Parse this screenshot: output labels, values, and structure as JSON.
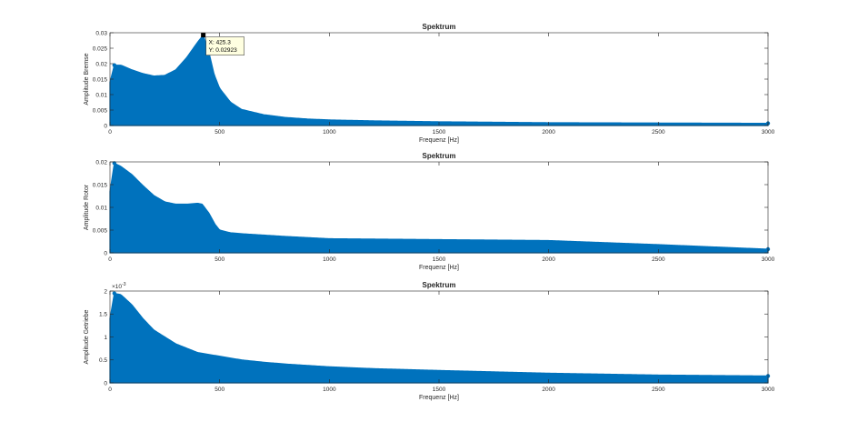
{
  "window": {
    "background": "#ffffff"
  },
  "colors": {
    "series": "#0072BD",
    "axis": "#262626",
    "grid_none": true,
    "datatip_bg": "#ffffe0"
  },
  "chart_data": [
    {
      "type": "area",
      "title": "Spektrum",
      "xlabel": "Frequenz [Hz]",
      "ylabel": "Amplitude Bremse",
      "xlim": [
        0,
        3000
      ],
      "ylim": [
        0,
        0.03
      ],
      "xticks": [
        0,
        500,
        1000,
        1500,
        2000,
        2500,
        3000
      ],
      "xtick_labels": [
        "0",
        "500",
        "1000",
        "1500",
        "2000",
        "2500",
        "3000"
      ],
      "yticks": [
        0,
        0.005,
        0.01,
        0.015,
        0.02,
        0.025,
        0.03
      ],
      "ytick_labels": [
        "0",
        "0.005",
        "0.01",
        "0.015",
        "0.02",
        "0.025",
        "0.03"
      ],
      "grid": false,
      "series": [
        {
          "x": [
            0,
            20,
            50,
            100,
            150,
            200,
            250,
            300,
            350,
            400,
            425.3,
            450,
            475,
            500,
            550,
            600,
            700,
            800,
            900,
            1000,
            1200,
            1500,
            2000,
            2500,
            3000
          ],
          "y": [
            0.014,
            0.0195,
            0.0195,
            0.018,
            0.0168,
            0.016,
            0.0162,
            0.018,
            0.022,
            0.027,
            0.02923,
            0.024,
            0.0165,
            0.012,
            0.0075,
            0.0052,
            0.0035,
            0.0026,
            0.0021,
            0.0018,
            0.0015,
            0.0012,
            0.0009,
            0.0008,
            0.0007
          ]
        }
      ],
      "datatip": {
        "x_label": "X: 425.3",
        "y_label": "Y: 0.02923",
        "x": 425.3,
        "y": 0.02923
      }
    },
    {
      "type": "area",
      "title": "Spektrum",
      "xlabel": "Frequenz [Hz]",
      "ylabel": "Amplitude Rotor",
      "xlim": [
        0,
        3000
      ],
      "ylim": [
        0,
        0.02
      ],
      "xticks": [
        0,
        500,
        1000,
        1500,
        2000,
        2500,
        3000
      ],
      "xtick_labels": [
        "0",
        "500",
        "1000",
        "1500",
        "2000",
        "2500",
        "3000"
      ],
      "yticks": [
        0,
        0.005,
        0.01,
        0.015,
        0.02
      ],
      "ytick_labels": [
        "0",
        "0.005",
        "0.01",
        "0.015",
        "0.02"
      ],
      "grid": false,
      "series": [
        {
          "x": [
            0,
            20,
            50,
            100,
            150,
            200,
            250,
            300,
            350,
            400,
            420,
            450,
            480,
            500,
            550,
            600,
            800,
            1000,
            1500,
            2000,
            2500,
            3000
          ],
          "y": [
            0.0135,
            0.0197,
            0.019,
            0.0172,
            0.0148,
            0.0126,
            0.0112,
            0.0107,
            0.0107,
            0.0109,
            0.0107,
            0.0088,
            0.0062,
            0.005,
            0.0044,
            0.0042,
            0.0036,
            0.0031,
            0.0029,
            0.0027,
            0.0018,
            0.0008
          ]
        }
      ]
    },
    {
      "type": "area",
      "title": "Spektrum",
      "xlabel": "Frequenz [Hz]",
      "ylabel": "Amplitude Getriebe",
      "xlim": [
        0,
        3000
      ],
      "ylim": [
        0,
        0.002
      ],
      "yscale_label": "×10",
      "yscale_exp": "-3",
      "xticks": [
        0,
        500,
        1000,
        1500,
        2000,
        2500,
        3000
      ],
      "xtick_labels": [
        "0",
        "500",
        "1000",
        "1500",
        "2000",
        "2500",
        "3000"
      ],
      "yticks": [
        0,
        0.0005,
        0.001,
        0.0015,
        0.002
      ],
      "ytick_labels": [
        "0",
        "0.5",
        "1",
        "1.5",
        "2"
      ],
      "grid": false,
      "series": [
        {
          "x": [
            0,
            20,
            50,
            100,
            150,
            200,
            300,
            400,
            500,
            600,
            700,
            800,
            1000,
            1200,
            1500,
            2000,
            2500,
            3000
          ],
          "y": [
            0.0014,
            0.00195,
            0.00192,
            0.0017,
            0.0014,
            0.00115,
            0.00085,
            0.00066,
            0.00058,
            0.0005,
            0.00045,
            0.00041,
            0.00035,
            0.00031,
            0.00027,
            0.00021,
            0.00017,
            0.00015
          ]
        }
      ]
    }
  ]
}
